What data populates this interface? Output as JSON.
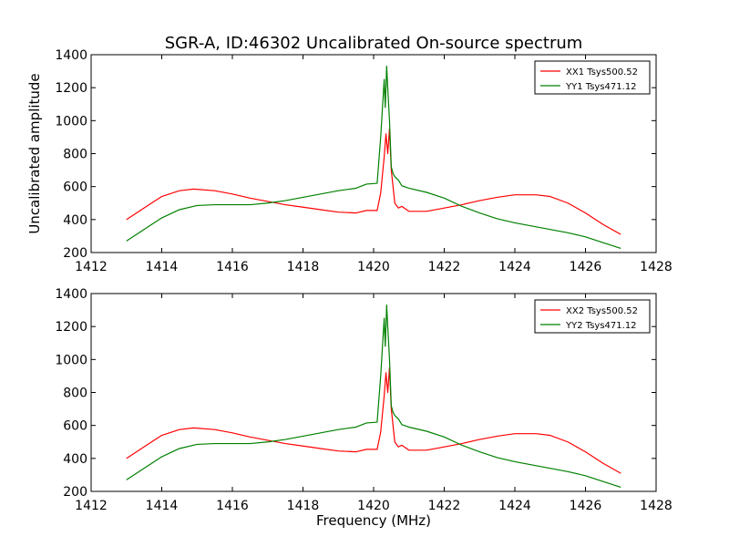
{
  "title": "SGR-A, ID:46302 Uncalibrated On-source spectrum",
  "chart_data": [
    {
      "type": "line",
      "ylabel": "Uncalibrated amplitude",
      "xlabel": "",
      "xlim": [
        1412,
        1428
      ],
      "ylim": [
        200,
        1400
      ],
      "xticks": [
        1412,
        1414,
        1416,
        1418,
        1420,
        1422,
        1424,
        1426,
        1428
      ],
      "yticks": [
        200,
        400,
        600,
        800,
        1000,
        1200,
        1400
      ],
      "grid": false,
      "legend_position": "top-right",
      "series": [
        {
          "name": "XX1 Tsys500.52",
          "color": "#ff0000",
          "x": [
            1413.0,
            1413.5,
            1414.0,
            1414.5,
            1414.9,
            1415.5,
            1416.0,
            1416.5,
            1417.0,
            1417.5,
            1418.0,
            1418.5,
            1419.0,
            1419.5,
            1419.8,
            1420.1,
            1420.2,
            1420.3,
            1420.35,
            1420.4,
            1420.45,
            1420.5,
            1420.6,
            1420.7,
            1420.8,
            1421.0,
            1421.5,
            1422.0,
            1422.5,
            1423.0,
            1423.5,
            1424.0,
            1424.6,
            1425.0,
            1425.5,
            1426.0,
            1426.5,
            1427.0
          ],
          "y": [
            400,
            470,
            540,
            575,
            585,
            575,
            555,
            530,
            510,
            490,
            475,
            460,
            445,
            440,
            455,
            455,
            560,
            780,
            920,
            800,
            950,
            700,
            500,
            470,
            480,
            450,
            450,
            470,
            490,
            515,
            535,
            550,
            550,
            540,
            500,
            440,
            370,
            310
          ]
        },
        {
          "name": "YY1 Tsys471.12",
          "color": "#008000",
          "x": [
            1413.0,
            1413.5,
            1414.0,
            1414.5,
            1415.0,
            1415.5,
            1416.0,
            1416.5,
            1417.0,
            1417.5,
            1418.0,
            1418.5,
            1419.0,
            1419.5,
            1419.8,
            1420.1,
            1420.2,
            1420.3,
            1420.33,
            1420.37,
            1420.4,
            1420.45,
            1420.5,
            1420.55,
            1420.6,
            1420.7,
            1420.8,
            1421.0,
            1421.5,
            1422.0,
            1422.5,
            1423.0,
            1423.5,
            1424.0,
            1424.5,
            1425.0,
            1425.5,
            1426.0,
            1426.5,
            1427.0
          ],
          "y": [
            270,
            340,
            410,
            460,
            485,
            490,
            490,
            490,
            500,
            515,
            535,
            555,
            575,
            590,
            615,
            620,
            900,
            1250,
            1080,
            1330,
            1200,
            1000,
            720,
            680,
            660,
            640,
            605,
            590,
            565,
            530,
            480,
            440,
            405,
            380,
            360,
            340,
            320,
            295,
            260,
            225
          ]
        }
      ]
    },
    {
      "type": "line",
      "ylabel": "",
      "xlabel": "Frequency (MHz)",
      "xlim": [
        1412,
        1428
      ],
      "ylim": [
        200,
        1400
      ],
      "xticks": [
        1412,
        1414,
        1416,
        1418,
        1420,
        1422,
        1424,
        1426,
        1428
      ],
      "yticks": [
        200,
        400,
        600,
        800,
        1000,
        1200,
        1400
      ],
      "grid": false,
      "legend_position": "top-right",
      "series": [
        {
          "name": "XX2 Tsys500.52",
          "color": "#ff0000",
          "x": [
            1413.0,
            1413.5,
            1414.0,
            1414.5,
            1414.9,
            1415.5,
            1416.0,
            1416.5,
            1417.0,
            1417.5,
            1418.0,
            1418.5,
            1419.0,
            1419.5,
            1419.8,
            1420.1,
            1420.2,
            1420.3,
            1420.35,
            1420.4,
            1420.45,
            1420.5,
            1420.6,
            1420.7,
            1420.8,
            1421.0,
            1421.5,
            1422.0,
            1422.5,
            1423.0,
            1423.5,
            1424.0,
            1424.6,
            1425.0,
            1425.5,
            1426.0,
            1426.5,
            1427.0
          ],
          "y": [
            400,
            470,
            540,
            575,
            585,
            575,
            555,
            530,
            510,
            490,
            475,
            460,
            445,
            440,
            455,
            455,
            560,
            780,
            920,
            800,
            950,
            700,
            500,
            470,
            480,
            450,
            450,
            470,
            490,
            515,
            535,
            550,
            550,
            540,
            500,
            440,
            370,
            310
          ]
        },
        {
          "name": "YY2 Tsys471.12",
          "color": "#008000",
          "x": [
            1413.0,
            1413.5,
            1414.0,
            1414.5,
            1415.0,
            1415.5,
            1416.0,
            1416.5,
            1417.0,
            1417.5,
            1418.0,
            1418.5,
            1419.0,
            1419.5,
            1419.8,
            1420.1,
            1420.2,
            1420.3,
            1420.33,
            1420.37,
            1420.4,
            1420.45,
            1420.5,
            1420.55,
            1420.6,
            1420.7,
            1420.8,
            1421.0,
            1421.5,
            1422.0,
            1422.5,
            1423.0,
            1423.5,
            1424.0,
            1424.5,
            1425.0,
            1425.5,
            1426.0,
            1426.5,
            1427.0
          ],
          "y": [
            270,
            340,
            410,
            460,
            485,
            490,
            490,
            490,
            500,
            515,
            535,
            555,
            575,
            590,
            615,
            620,
            900,
            1250,
            1080,
            1330,
            1200,
            1000,
            720,
            680,
            660,
            640,
            605,
            590,
            565,
            530,
            480,
            440,
            405,
            380,
            360,
            340,
            320,
            295,
            260,
            225
          ]
        }
      ]
    }
  ]
}
